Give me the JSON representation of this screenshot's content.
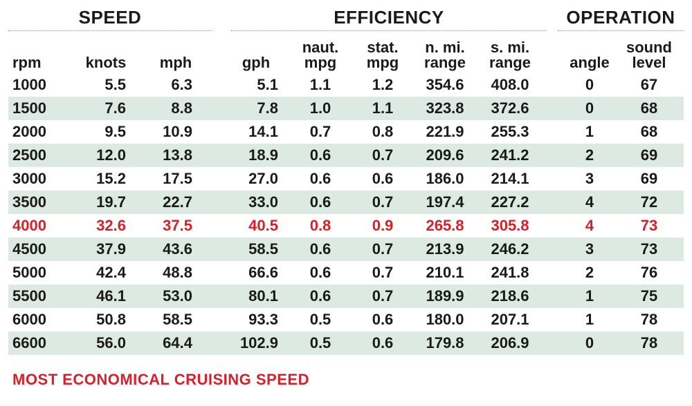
{
  "groups": [
    {
      "title": "SPEED"
    },
    {
      "title": "EFFICIENCY"
    },
    {
      "title": "OPERATION"
    }
  ],
  "columns": [
    {
      "label1": "",
      "label2": "rpm"
    },
    {
      "label1": "",
      "label2": "knots"
    },
    {
      "label1": "",
      "label2": "mph"
    },
    {
      "label1": "",
      "label2": "gph"
    },
    {
      "label1": "naut.",
      "label2": "mpg"
    },
    {
      "label1": "stat.",
      "label2": "mpg"
    },
    {
      "label1": "n. mi.",
      "label2": "range"
    },
    {
      "label1": "s. mi.",
      "label2": "range"
    },
    {
      "label1": "",
      "label2": "angle"
    },
    {
      "label1": "sound",
      "label2": "level"
    }
  ],
  "rows": [
    [
      "1000",
      "5.5",
      "6.3",
      "5.1",
      "1.1",
      "1.2",
      "354.6",
      "408.0",
      "0",
      "67"
    ],
    [
      "1500",
      "7.6",
      "8.8",
      "7.8",
      "1.0",
      "1.1",
      "323.8",
      "372.6",
      "0",
      "68"
    ],
    [
      "2000",
      "9.5",
      "10.9",
      "14.1",
      "0.7",
      "0.8",
      "221.9",
      "255.3",
      "1",
      "68"
    ],
    [
      "2500",
      "12.0",
      "13.8",
      "18.9",
      "0.6",
      "0.7",
      "209.6",
      "241.2",
      "2",
      "69"
    ],
    [
      "3000",
      "15.2",
      "17.5",
      "27.0",
      "0.6",
      "0.6",
      "186.0",
      "214.1",
      "3",
      "69"
    ],
    [
      "3500",
      "19.7",
      "22.7",
      "33.0",
      "0.6",
      "0.7",
      "197.4",
      "227.2",
      "4",
      "72"
    ],
    [
      "4000",
      "32.6",
      "37.5",
      "40.5",
      "0.8",
      "0.9",
      "265.8",
      "305.8",
      "4",
      "73"
    ],
    [
      "4500",
      "37.9",
      "43.6",
      "58.5",
      "0.6",
      "0.7",
      "213.9",
      "246.2",
      "3",
      "73"
    ],
    [
      "5000",
      "42.4",
      "48.8",
      "66.6",
      "0.6",
      "0.7",
      "210.1",
      "241.8",
      "2",
      "76"
    ],
    [
      "5500",
      "46.1",
      "53.0",
      "80.1",
      "0.6",
      "0.7",
      "189.9",
      "218.6",
      "1",
      "75"
    ],
    [
      "6000",
      "50.8",
      "58.5",
      "93.3",
      "0.5",
      "0.6",
      "180.0",
      "207.1",
      "1",
      "78"
    ],
    [
      "6600",
      "56.0",
      "64.4",
      "102.9",
      "0.5",
      "0.6",
      "179.8",
      "206.9",
      "0",
      "78"
    ]
  ],
  "highlighted_row_index": 6,
  "footnote": "MOST ECONOMICAL CRUISING SPEED",
  "colors": {
    "highlight": "#d6202a",
    "row_shade": "#dde9e3",
    "text": "#1a1a1a"
  }
}
